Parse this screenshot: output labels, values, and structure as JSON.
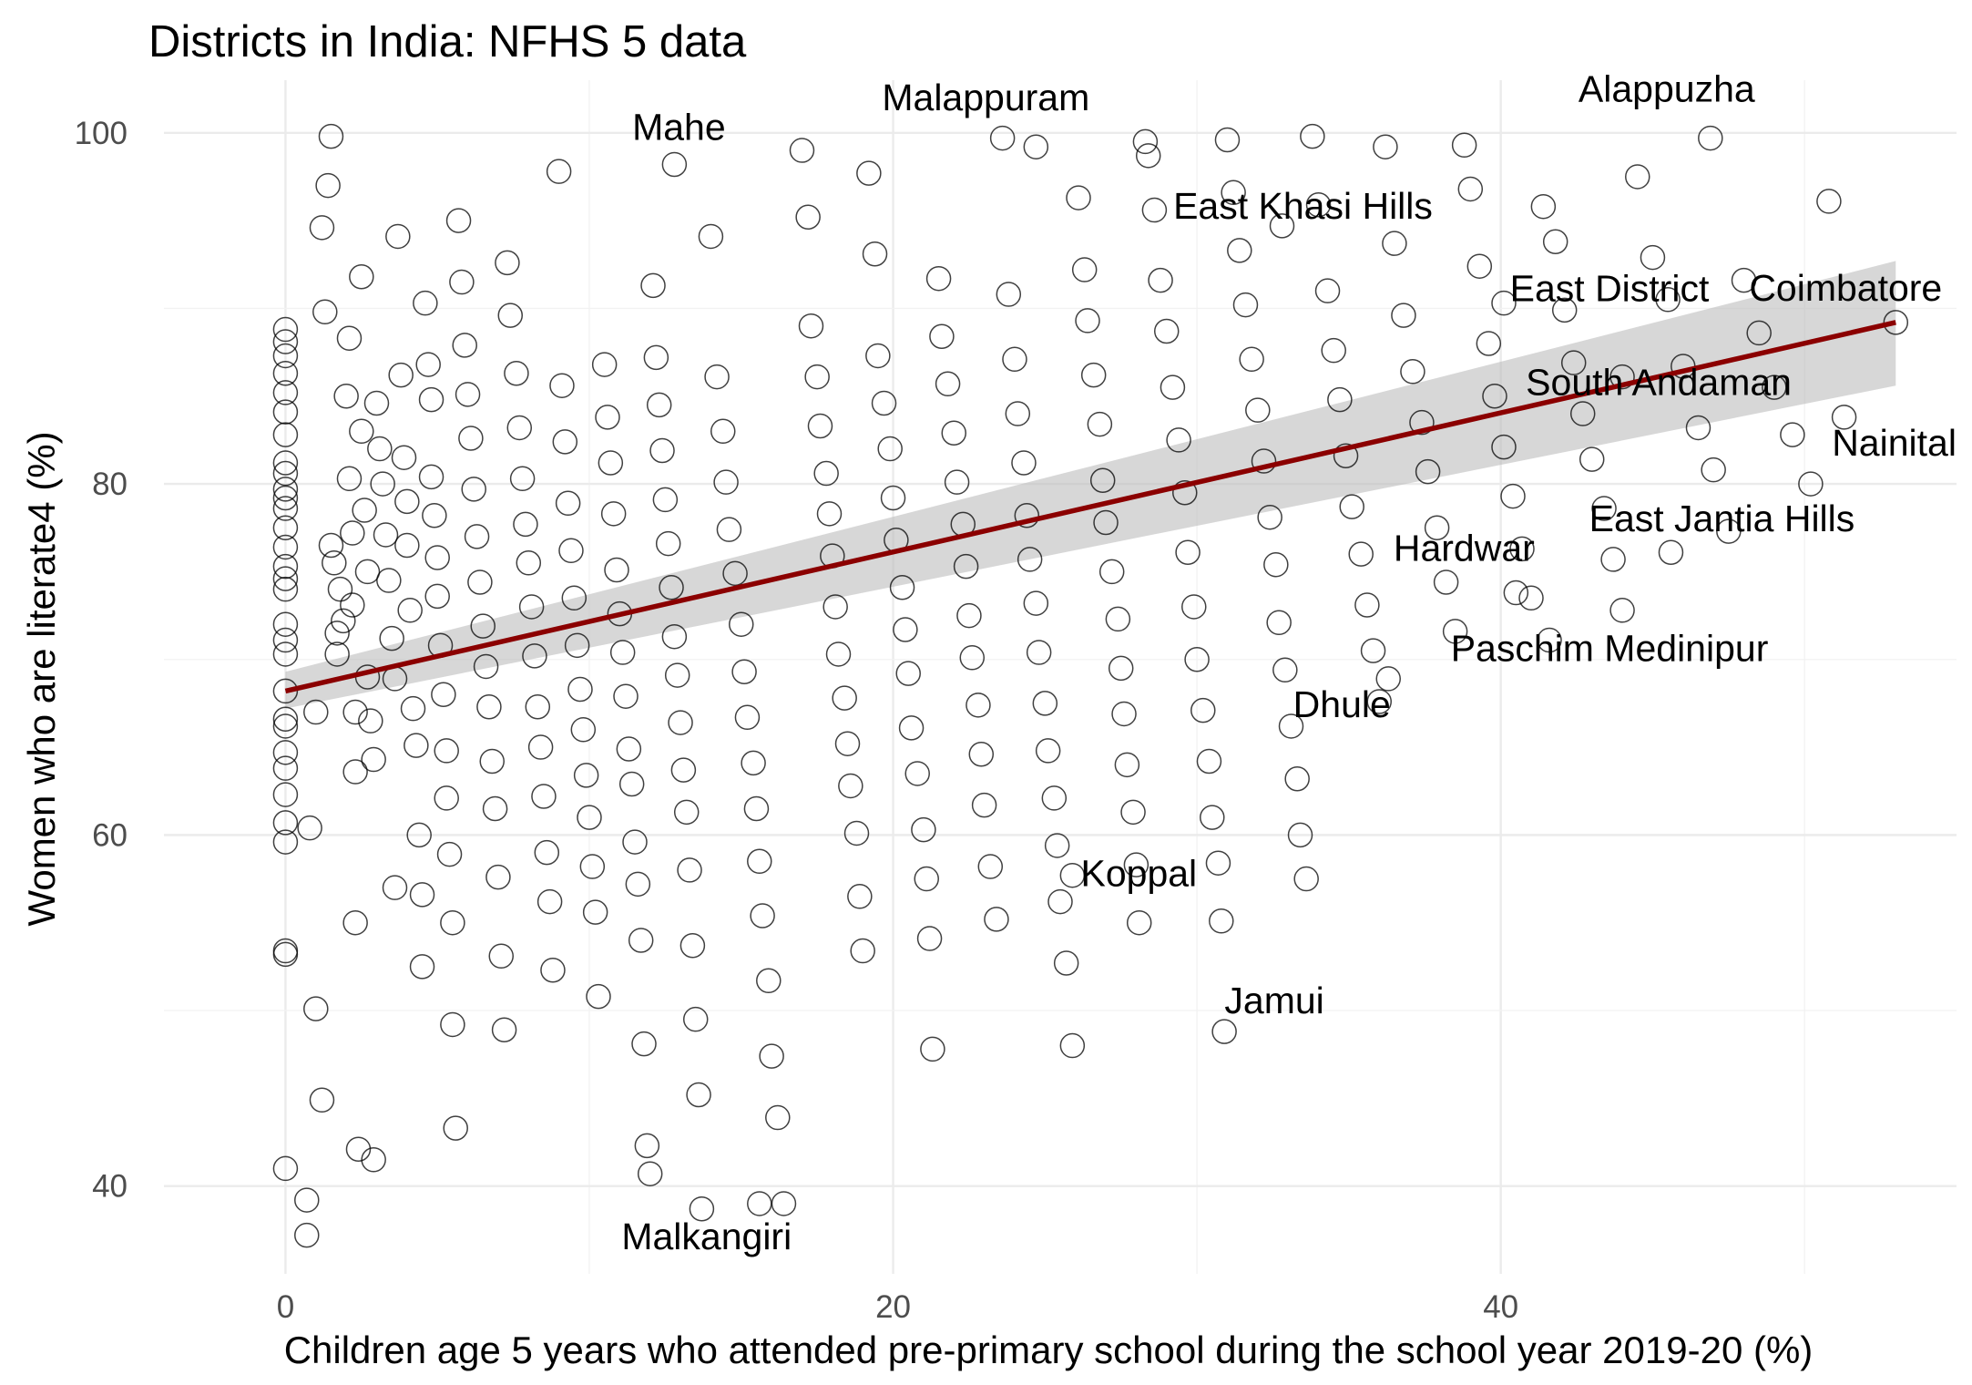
{
  "chart_data": {
    "type": "scatter",
    "title": "Districts in India: NFHS 5 data",
    "xlabel": "Children age 5 years who attended pre-primary school during the school year 2019-20 (%)",
    "ylabel": "Women who are literate4 (%)",
    "xlim": [
      -4,
      55
    ],
    "ylim": [
      35,
      103
    ],
    "x_ticks": [
      0,
      20,
      40
    ],
    "y_ticks": [
      40,
      60,
      80,
      100
    ],
    "grid": true,
    "marker": "hollow circle",
    "trend": {
      "method": "linear",
      "x_range": [
        0,
        53
      ],
      "y_start": 68.2,
      "y_end": 89.2,
      "ci_start": [
        67.2,
        69.3
      ],
      "ci_end": [
        85.6,
        92.7
      ],
      "color": "#8b0000",
      "band_color": "#bdbdbd"
    },
    "labels": [
      {
        "name": "Mahe",
        "x": 12.8,
        "y": 98.2
      },
      {
        "name": "Malappuram",
        "x": 24.7,
        "y": 99.2
      },
      {
        "name": "Alappuzha",
        "x": 46.9,
        "y": 99.7
      },
      {
        "name": "East Khasi Hills",
        "x": 32.8,
        "y": 94.7
      },
      {
        "name": "East District",
        "x": 40.1,
        "y": 90.3
      },
      {
        "name": "Coimbatore",
        "x": 53.0,
        "y": 89.2
      },
      {
        "name": "South Andaman",
        "x": 44.0,
        "y": 86.1
      },
      {
        "name": "Nainital",
        "x": 51.3,
        "y": 83.8
      },
      {
        "name": "East Jantia Hills",
        "x": 45.6,
        "y": 76.1
      },
      {
        "name": "Hardwar",
        "x": 40.5,
        "y": 73.8
      },
      {
        "name": "Paschim Medinipur",
        "x": 41.6,
        "y": 71.1
      },
      {
        "name": "Dhule",
        "x": 36.3,
        "y": 68.9
      },
      {
        "name": "Koppal",
        "x": 25.9,
        "y": 57.7
      },
      {
        "name": "Jamui",
        "x": 30.9,
        "y": 48.8
      },
      {
        "name": "Malkangiri",
        "x": 15.6,
        "y": 39.0
      }
    ],
    "points": [
      [
        12.8,
        98.2
      ],
      [
        24.7,
        99.2
      ],
      [
        46.9,
        99.7
      ],
      [
        32.8,
        94.7
      ],
      [
        40.1,
        90.3
      ],
      [
        53.0,
        89.2
      ],
      [
        44.0,
        86.1
      ],
      [
        51.3,
        83.8
      ],
      [
        45.6,
        76.1
      ],
      [
        40.5,
        73.8
      ],
      [
        41.6,
        71.1
      ],
      [
        36.3,
        68.9
      ],
      [
        25.9,
        57.7
      ],
      [
        30.9,
        48.8
      ],
      [
        15.6,
        39.0
      ],
      [
        0,
        88.8
      ],
      [
        0,
        88.1
      ],
      [
        0,
        87.3
      ],
      [
        0,
        86.3
      ],
      [
        0,
        85.2
      ],
      [
        0,
        84.1
      ],
      [
        0,
        82.8
      ],
      [
        0,
        81.2
      ],
      [
        0,
        80.6
      ],
      [
        0,
        79.7
      ],
      [
        0,
        79.2
      ],
      [
        0,
        78.6
      ],
      [
        0,
        77.5
      ],
      [
        0,
        76.4
      ],
      [
        0,
        75.3
      ],
      [
        0,
        74.6
      ],
      [
        0,
        74.0
      ],
      [
        0,
        72.0
      ],
      [
        0,
        71.1
      ],
      [
        0,
        70.3
      ],
      [
        0,
        68.2
      ],
      [
        0,
        66.6
      ],
      [
        0,
        66.2
      ],
      [
        0,
        64.7
      ],
      [
        0,
        63.8
      ],
      [
        0,
        62.3
      ],
      [
        0,
        60.7
      ],
      [
        0,
        59.6
      ],
      [
        0,
        53.4
      ],
      [
        0,
        53.2
      ],
      [
        0,
        41.0
      ],
      [
        0.7,
        39.2
      ],
      [
        0.7,
        37.2
      ],
      [
        0.8,
        60.4
      ],
      [
        1.0,
        67.0
      ],
      [
        1.0,
        50.1
      ],
      [
        1.2,
        44.9
      ],
      [
        1.2,
        94.6
      ],
      [
        1.3,
        89.8
      ],
      [
        1.4,
        97.0
      ],
      [
        1.5,
        99.8
      ],
      [
        1.5,
        76.5
      ],
      [
        1.6,
        75.5
      ],
      [
        1.7,
        71.5
      ],
      [
        1.7,
        70.3
      ],
      [
        1.8,
        74.0
      ],
      [
        1.9,
        72.2
      ],
      [
        2.0,
        85.0
      ],
      [
        2.1,
        88.3
      ],
      [
        2.1,
        80.3
      ],
      [
        2.2,
        77.2
      ],
      [
        2.2,
        73.1
      ],
      [
        2.3,
        67.0
      ],
      [
        2.3,
        63.6
      ],
      [
        2.3,
        55.0
      ],
      [
        2.4,
        42.1
      ],
      [
        2.5,
        91.8
      ],
      [
        2.5,
        83.0
      ],
      [
        2.6,
        78.5
      ],
      [
        2.7,
        75.0
      ],
      [
        2.7,
        69.0
      ],
      [
        2.8,
        66.5
      ],
      [
        2.9,
        64.3
      ],
      [
        2.9,
        41.5
      ],
      [
        3.0,
        84.6
      ],
      [
        3.1,
        82.0
      ],
      [
        3.2,
        80.0
      ],
      [
        3.3,
        77.1
      ],
      [
        3.4,
        74.5
      ],
      [
        3.5,
        71.2
      ],
      [
        3.6,
        68.9
      ],
      [
        3.6,
        57.0
      ],
      [
        3.7,
        94.1
      ],
      [
        3.8,
        86.2
      ],
      [
        3.9,
        81.5
      ],
      [
        4.0,
        79.0
      ],
      [
        4.0,
        76.5
      ],
      [
        4.1,
        72.8
      ],
      [
        4.2,
        67.2
      ],
      [
        4.3,
        65.1
      ],
      [
        4.4,
        60.0
      ],
      [
        4.5,
        56.6
      ],
      [
        4.5,
        52.5
      ],
      [
        4.6,
        90.3
      ],
      [
        4.7,
        86.8
      ],
      [
        4.8,
        84.8
      ],
      [
        4.8,
        80.4
      ],
      [
        4.9,
        78.2
      ],
      [
        5.0,
        75.8
      ],
      [
        5.0,
        73.6
      ],
      [
        5.1,
        70.8
      ],
      [
        5.2,
        68.0
      ],
      [
        5.3,
        64.8
      ],
      [
        5.3,
        62.1
      ],
      [
        5.4,
        58.9
      ],
      [
        5.5,
        55.0
      ],
      [
        5.5,
        49.2
      ],
      [
        5.6,
        43.3
      ],
      [
        5.7,
        95.0
      ],
      [
        5.8,
        91.5
      ],
      [
        5.9,
        87.9
      ],
      [
        6.0,
        85.1
      ],
      [
        6.1,
        82.6
      ],
      [
        6.2,
        79.7
      ],
      [
        6.3,
        77.0
      ],
      [
        6.4,
        74.4
      ],
      [
        6.5,
        71.9
      ],
      [
        6.6,
        69.6
      ],
      [
        6.7,
        67.3
      ],
      [
        6.8,
        64.2
      ],
      [
        6.9,
        61.5
      ],
      [
        7.0,
        57.6
      ],
      [
        7.1,
        53.1
      ],
      [
        7.2,
        48.9
      ],
      [
        7.3,
        92.6
      ],
      [
        7.4,
        89.6
      ],
      [
        7.6,
        86.3
      ],
      [
        7.7,
        83.2
      ],
      [
        7.8,
        80.3
      ],
      [
        7.9,
        77.7
      ],
      [
        8.0,
        75.5
      ],
      [
        8.1,
        73.0
      ],
      [
        8.2,
        70.2
      ],
      [
        8.3,
        67.3
      ],
      [
        8.4,
        65.0
      ],
      [
        8.5,
        62.2
      ],
      [
        8.6,
        59.0
      ],
      [
        8.7,
        56.2
      ],
      [
        8.8,
        52.3
      ],
      [
        9.0,
        97.8
      ],
      [
        9.1,
        85.6
      ],
      [
        9.2,
        82.4
      ],
      [
        9.3,
        78.9
      ],
      [
        9.4,
        76.2
      ],
      [
        9.5,
        73.5
      ],
      [
        9.6,
        70.8
      ],
      [
        9.7,
        68.3
      ],
      [
        9.8,
        66.0
      ],
      [
        9.9,
        63.4
      ],
      [
        10.0,
        61.0
      ],
      [
        10.1,
        58.2
      ],
      [
        10.2,
        55.6
      ],
      [
        10.3,
        50.8
      ],
      [
        10.5,
        86.8
      ],
      [
        10.6,
        83.8
      ],
      [
        10.7,
        81.2
      ],
      [
        10.8,
        78.3
      ],
      [
        10.9,
        75.1
      ],
      [
        11.0,
        72.6
      ],
      [
        11.1,
        70.4
      ],
      [
        11.2,
        67.9
      ],
      [
        11.3,
        64.9
      ],
      [
        11.4,
        62.9
      ],
      [
        11.5,
        59.6
      ],
      [
        11.6,
        57.2
      ],
      [
        11.7,
        54.0
      ],
      [
        11.8,
        48.1
      ],
      [
        11.9,
        42.3
      ],
      [
        12.0,
        40.7
      ],
      [
        12.1,
        91.3
      ],
      [
        12.2,
        87.2
      ],
      [
        12.3,
        84.5
      ],
      [
        12.4,
        81.9
      ],
      [
        12.5,
        79.1
      ],
      [
        12.6,
        76.6
      ],
      [
        12.7,
        74.1
      ],
      [
        12.8,
        71.3
      ],
      [
        12.9,
        69.1
      ],
      [
        13.0,
        66.4
      ],
      [
        13.1,
        63.7
      ],
      [
        13.2,
        61.3
      ],
      [
        13.3,
        58.0
      ],
      [
        13.4,
        53.7
      ],
      [
        13.5,
        49.5
      ],
      [
        13.6,
        45.2
      ],
      [
        13.7,
        38.7
      ],
      [
        14.0,
        94.1
      ],
      [
        14.2,
        86.1
      ],
      [
        14.4,
        83.0
      ],
      [
        14.5,
        80.1
      ],
      [
        14.6,
        77.4
      ],
      [
        14.8,
        74.9
      ],
      [
        15.0,
        72.0
      ],
      [
        15.1,
        69.3
      ],
      [
        15.2,
        66.7
      ],
      [
        15.4,
        64.1
      ],
      [
        15.5,
        61.5
      ],
      [
        15.6,
        58.5
      ],
      [
        15.7,
        55.4
      ],
      [
        15.9,
        51.7
      ],
      [
        16.0,
        47.4
      ],
      [
        16.2,
        43.9
      ],
      [
        16.4,
        39.0
      ],
      [
        17.0,
        99.0
      ],
      [
        17.2,
        95.2
      ],
      [
        17.3,
        89.0
      ],
      [
        17.5,
        86.1
      ],
      [
        17.6,
        83.3
      ],
      [
        17.8,
        80.6
      ],
      [
        17.9,
        78.3
      ],
      [
        18.0,
        75.9
      ],
      [
        18.1,
        73.0
      ],
      [
        18.2,
        70.3
      ],
      [
        18.4,
        67.8
      ],
      [
        18.5,
        65.2
      ],
      [
        18.6,
        62.8
      ],
      [
        18.8,
        60.1
      ],
      [
        18.9,
        56.5
      ],
      [
        19.0,
        53.4
      ],
      [
        19.2,
        97.7
      ],
      [
        19.4,
        93.1
      ],
      [
        19.5,
        87.3
      ],
      [
        19.7,
        84.6
      ],
      [
        19.9,
        82.0
      ],
      [
        20.0,
        79.2
      ],
      [
        20.1,
        76.8
      ],
      [
        20.3,
        74.1
      ],
      [
        20.4,
        71.7
      ],
      [
        20.5,
        69.2
      ],
      [
        20.6,
        66.1
      ],
      [
        20.8,
        63.5
      ],
      [
        21.0,
        60.3
      ],
      [
        21.1,
        57.5
      ],
      [
        21.2,
        54.1
      ],
      [
        21.3,
        47.8
      ],
      [
        21.5,
        91.7
      ],
      [
        21.6,
        88.4
      ],
      [
        21.8,
        85.7
      ],
      [
        22.0,
        82.9
      ],
      [
        22.1,
        80.1
      ],
      [
        22.3,
        77.7
      ],
      [
        22.4,
        75.3
      ],
      [
        22.5,
        72.5
      ],
      [
        22.6,
        70.1
      ],
      [
        22.8,
        67.4
      ],
      [
        22.9,
        64.6
      ],
      [
        23.0,
        61.7
      ],
      [
        23.2,
        58.2
      ],
      [
        23.4,
        55.2
      ],
      [
        23.6,
        99.7
      ],
      [
        23.8,
        90.8
      ],
      [
        24.0,
        87.1
      ],
      [
        24.1,
        84.0
      ],
      [
        24.3,
        81.2
      ],
      [
        24.4,
        78.2
      ],
      [
        24.5,
        75.7
      ],
      [
        24.7,
        73.2
      ],
      [
        24.8,
        70.4
      ],
      [
        25.0,
        67.5
      ],
      [
        25.1,
        64.8
      ],
      [
        25.3,
        62.1
      ],
      [
        25.4,
        59.4
      ],
      [
        25.5,
        56.2
      ],
      [
        25.7,
        52.7
      ],
      [
        25.9,
        48.0
      ],
      [
        26.1,
        96.3
      ],
      [
        26.3,
        92.2
      ],
      [
        26.4,
        89.3
      ],
      [
        26.6,
        86.2
      ],
      [
        26.8,
        83.4
      ],
      [
        26.9,
        80.2
      ],
      [
        27.0,
        77.8
      ],
      [
        27.2,
        75.0
      ],
      [
        27.4,
        72.3
      ],
      [
        27.5,
        69.5
      ],
      [
        27.6,
        66.9
      ],
      [
        27.7,
        64.0
      ],
      [
        27.9,
        61.3
      ],
      [
        28.0,
        58.3
      ],
      [
        28.1,
        55.0
      ],
      [
        28.3,
        99.5
      ],
      [
        28.4,
        98.7
      ],
      [
        28.6,
        95.6
      ],
      [
        28.8,
        91.6
      ],
      [
        29.0,
        88.7
      ],
      [
        29.2,
        85.5
      ],
      [
        29.4,
        82.5
      ],
      [
        29.6,
        79.5
      ],
      [
        29.7,
        76.1
      ],
      [
        29.9,
        73.0
      ],
      [
        30.0,
        70.0
      ],
      [
        30.2,
        67.1
      ],
      [
        30.4,
        64.2
      ],
      [
        30.5,
        61.0
      ],
      [
        30.7,
        58.4
      ],
      [
        30.8,
        55.1
      ],
      [
        31.0,
        99.6
      ],
      [
        31.2,
        96.6
      ],
      [
        31.4,
        93.3
      ],
      [
        31.6,
        90.2
      ],
      [
        31.8,
        87.1
      ],
      [
        32.0,
        84.2
      ],
      [
        32.2,
        81.3
      ],
      [
        32.4,
        78.1
      ],
      [
        32.6,
        75.4
      ],
      [
        32.7,
        72.1
      ],
      [
        32.9,
        69.4
      ],
      [
        33.1,
        66.2
      ],
      [
        33.3,
        63.2
      ],
      [
        33.4,
        60.0
      ],
      [
        33.6,
        57.5
      ],
      [
        33.8,
        99.8
      ],
      [
        34.0,
        95.9
      ],
      [
        34.3,
        91.0
      ],
      [
        34.5,
        87.6
      ],
      [
        34.7,
        84.8
      ],
      [
        34.9,
        81.6
      ],
      [
        35.1,
        78.7
      ],
      [
        35.4,
        76.0
      ],
      [
        35.6,
        73.1
      ],
      [
        35.8,
        70.5
      ],
      [
        36.0,
        67.6
      ],
      [
        36.2,
        99.2
      ],
      [
        36.5,
        93.7
      ],
      [
        36.8,
        89.6
      ],
      [
        37.1,
        86.4
      ],
      [
        37.4,
        83.5
      ],
      [
        37.6,
        80.7
      ],
      [
        37.9,
        77.5
      ],
      [
        38.2,
        74.4
      ],
      [
        38.5,
        71.6
      ],
      [
        38.8,
        99.3
      ],
      [
        39.0,
        96.8
      ],
      [
        39.3,
        92.4
      ],
      [
        39.6,
        88.0
      ],
      [
        39.8,
        85.0
      ],
      [
        40.1,
        82.1
      ],
      [
        40.4,
        79.3
      ],
      [
        40.7,
        76.3
      ],
      [
        41.0,
        73.5
      ],
      [
        41.4,
        95.8
      ],
      [
        41.8,
        93.8
      ],
      [
        42.1,
        89.9
      ],
      [
        42.4,
        86.9
      ],
      [
        42.7,
        84.0
      ],
      [
        43.0,
        81.4
      ],
      [
        43.4,
        78.6
      ],
      [
        43.7,
        75.7
      ],
      [
        44.0,
        72.8
      ],
      [
        44.5,
        97.5
      ],
      [
        45.0,
        92.9
      ],
      [
        45.5,
        90.5
      ],
      [
        46.0,
        86.7
      ],
      [
        46.5,
        83.2
      ],
      [
        47.0,
        80.8
      ],
      [
        47.5,
        77.3
      ],
      [
        48.0,
        91.6
      ],
      [
        48.5,
        88.6
      ],
      [
        49.0,
        85.5
      ],
      [
        49.6,
        82.8
      ],
      [
        50.2,
        80.0
      ],
      [
        50.8,
        96.1
      ]
    ]
  }
}
